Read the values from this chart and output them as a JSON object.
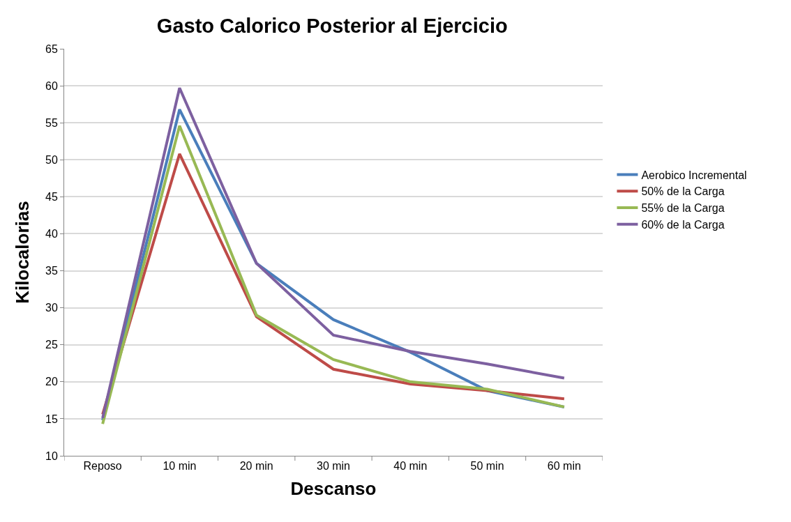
{
  "chart_data": {
    "type": "line",
    "title": "Gasto Calorico Posterior al Ejercicio",
    "xlabel": "Descanso",
    "ylabel": "Kilocalorias",
    "categories": [
      "Reposo",
      "10 min",
      "20 min",
      "30 min",
      "40 min",
      "50 min",
      "60 min"
    ],
    "series": [
      {
        "name": "Aerobico Incremental",
        "color": "#4a7ebb",
        "values": [
          14.8,
          56.8,
          36.0,
          28.4,
          24.0,
          18.8,
          16.6
        ]
      },
      {
        "name": "50% de la Carga",
        "color": "#be4b48",
        "values": [
          15.6,
          50.8,
          28.8,
          21.7,
          19.7,
          18.8,
          17.7
        ]
      },
      {
        "name": "55% de la Carga",
        "color": "#98b954",
        "values": [
          14.3,
          54.6,
          29.0,
          23.0,
          20.0,
          19.0,
          16.6
        ]
      },
      {
        "name": "60% de la Carga",
        "color": "#7d60a0",
        "values": [
          15.1,
          59.7,
          36.0,
          26.3,
          24.1,
          22.4,
          20.5
        ]
      }
    ],
    "ylim": [
      10,
      65
    ],
    "yticks": [
      10,
      15,
      20,
      25,
      30,
      35,
      40,
      45,
      50,
      55,
      60,
      65
    ],
    "grid": "y",
    "legend": "right",
    "marker": "none",
    "line_style": "solid"
  }
}
